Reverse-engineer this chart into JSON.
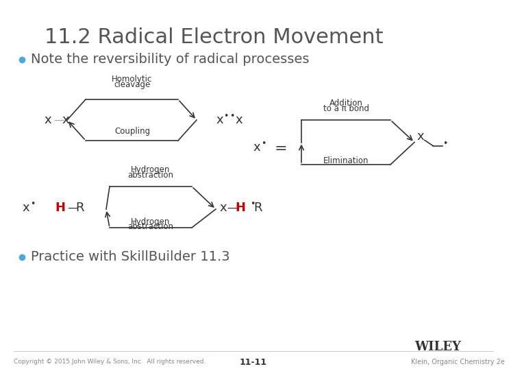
{
  "title": "11.2 Radical Electron Movement",
  "title_fontsize": 22,
  "title_color": "#555555",
  "bullet_color": "#4AABDB",
  "bullet1_text": "Note the reversibility of radical processes",
  "bullet1_fontsize": 14,
  "bullet2_text": "Practice with SkillBuilder 11.3",
  "bullet2_fontsize": 14,
  "background_color": "#ffffff",
  "footer_left": "Copyright © 2015 John Wiley & Sons, Inc.  All rights reserved.",
  "footer_center": "11-11",
  "footer_right": "Klein, Organic Chemistry 2e",
  "wiley_text": "WILEY",
  "diagram_color": "#333333",
  "red_color": "#cc0000",
  "teal_color": "#4AABDB"
}
